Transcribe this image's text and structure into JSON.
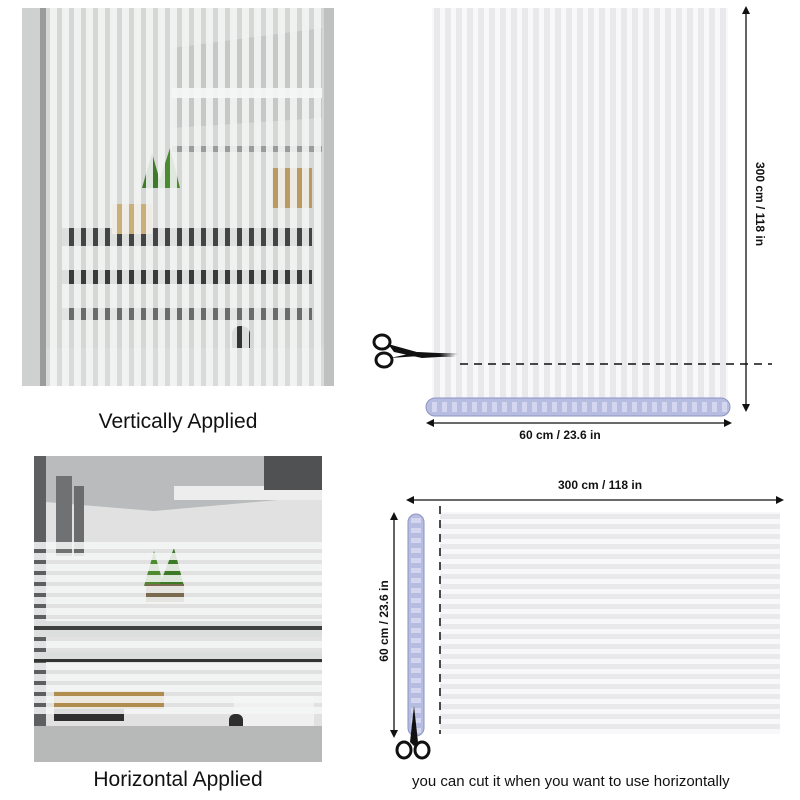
{
  "top_left": {
    "caption": "Vertically Applied"
  },
  "bottom_left": {
    "caption": "Horizontal Applied"
  },
  "top_right": {
    "height_label": "300 cm / 118 in",
    "width_label": "60 cm / 23.6 in"
  },
  "bottom_right": {
    "length_label": "300 cm / 118 in",
    "width_label": "60 cm / 23.6 in",
    "note": "you can cut it when you want to use horizontally"
  },
  "icons": [
    "scissors-icon",
    "film-roll-icon",
    "arrow-icon"
  ],
  "colors": {
    "stripe": "#e9e9ec",
    "film_background": "#f8f8fa",
    "roll_blue": "#b7bde0",
    "dimension_line": "#111111"
  }
}
